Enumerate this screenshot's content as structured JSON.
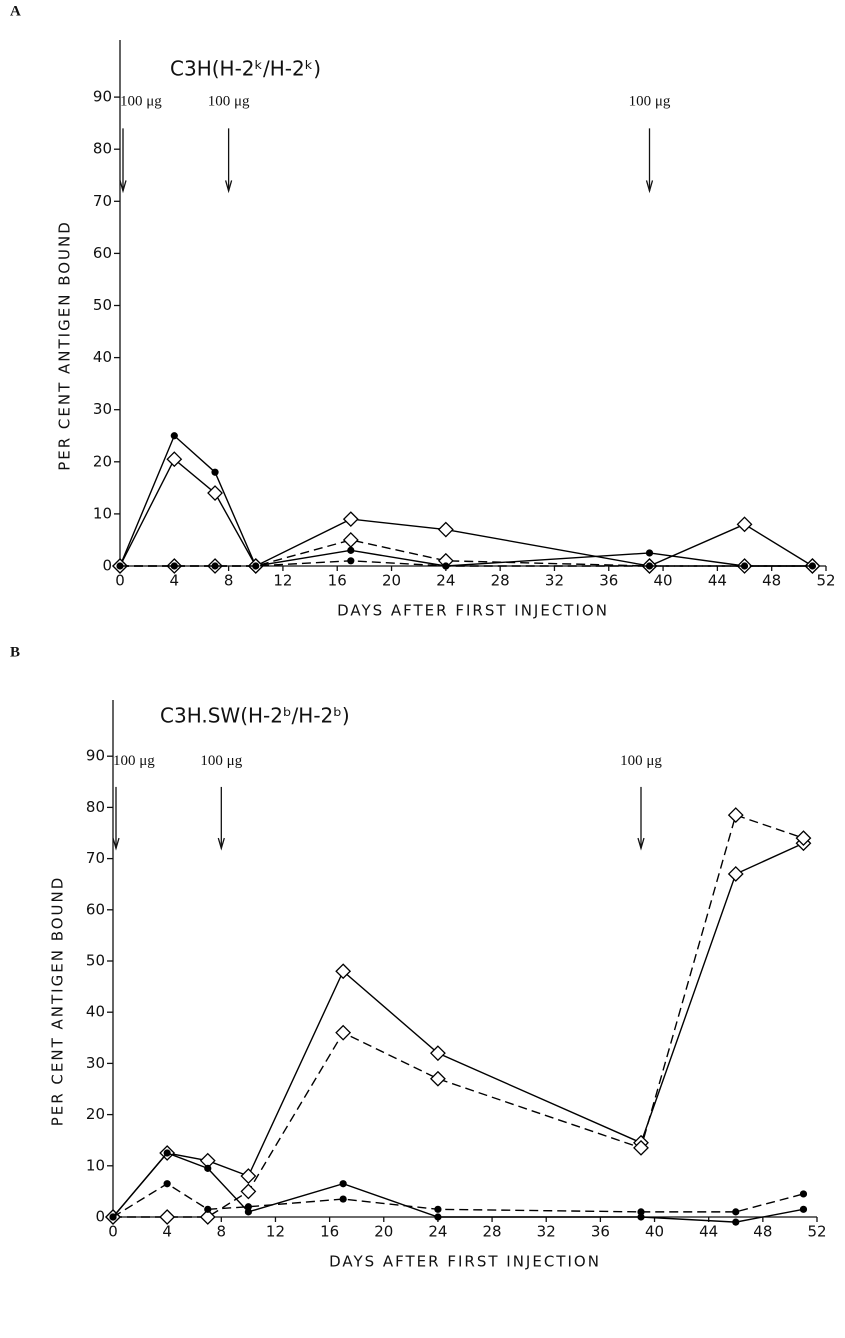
{
  "chart_data": [
    {
      "type": "line",
      "panel": "A",
      "title": "C3H(H-2ᵏ/H-2ᵏ)",
      "xlabel": "DAYS AFTER FIRST INJECTION",
      "ylabel": "PER CENT ANTIGEN BOUND",
      "x": [
        0,
        4,
        7,
        10,
        17,
        24,
        39,
        46,
        51
      ],
      "series": [
        {
          "color": "#000000",
          "marker": "dot",
          "dashed": false,
          "values": [
            0,
            25,
            18,
            0,
            3,
            0,
            2.5,
            0,
            0
          ]
        },
        {
          "color": "#000000",
          "marker": "diamond",
          "dashed": false,
          "values": [
            0,
            20.5,
            14,
            0,
            9,
            7,
            0,
            8,
            0
          ]
        },
        {
          "color": "#000000",
          "marker": "diamond",
          "dashed": true,
          "values": [
            0,
            0,
            0,
            0,
            5,
            1,
            0,
            0,
            0
          ]
        },
        {
          "color": "#000000",
          "marker": "dot",
          "dashed": true,
          "values": [
            0,
            0,
            0,
            0,
            1,
            0,
            0,
            0,
            0
          ]
        }
      ],
      "annotations": [
        {
          "text": "100 μg",
          "x": 0
        },
        {
          "text": "100 μg",
          "x": 8
        },
        {
          "text": "100 μg",
          "x": 39
        }
      ],
      "xlim": [
        0,
        52
      ],
      "xticks": [
        0,
        4,
        8,
        12,
        16,
        20,
        24,
        28,
        32,
        36,
        40,
        44,
        48,
        52
      ],
      "ylim": [
        0,
        100
      ],
      "yticks": [
        0,
        10,
        20,
        30,
        40,
        50,
        60,
        70,
        80,
        90
      ],
      "grid": false
    },
    {
      "type": "line",
      "panel": "B",
      "title": "C3H.SW(H-2ᵇ/H-2ᵇ)",
      "xlabel": "DAYS AFTER FIRST INJECTION",
      "ylabel": "PER CENT ANTIGEN BOUND",
      "x": [
        0,
        4,
        7,
        10,
        17,
        24,
        39,
        46,
        51
      ],
      "series": [
        {
          "color": "#000000",
          "marker": "diamond",
          "dashed": false,
          "values": [
            0,
            12.5,
            11,
            8,
            48,
            32,
            14.5,
            67,
            73
          ]
        },
        {
          "color": "#000000",
          "marker": "diamond",
          "dashed": true,
          "values": [
            0,
            0,
            0,
            5,
            36,
            27,
            13.5,
            78.5,
            74
          ]
        },
        {
          "color": "#000000",
          "marker": "dot",
          "dashed": false,
          "values": [
            0,
            12.5,
            9.5,
            1,
            6.5,
            0,
            0,
            -1,
            1.5
          ]
        },
        {
          "color": "#000000",
          "marker": "dot",
          "dashed": true,
          "values": [
            0,
            6.5,
            1.5,
            2,
            3.5,
            1.5,
            1,
            1,
            4.5
          ]
        }
      ],
      "annotations": [
        {
          "text": "100 μg",
          "x": 0
        },
        {
          "text": "100 μg",
          "x": 8
        },
        {
          "text": "100 μg",
          "x": 39
        }
      ],
      "xlim": [
        0,
        52
      ],
      "xticks": [
        0,
        4,
        8,
        12,
        16,
        20,
        24,
        28,
        32,
        36,
        40,
        44,
        48,
        52
      ],
      "ylim": [
        0,
        100
      ],
      "yticks": [
        0,
        10,
        20,
        30,
        40,
        50,
        60,
        70,
        80,
        90
      ],
      "grid": false
    }
  ]
}
